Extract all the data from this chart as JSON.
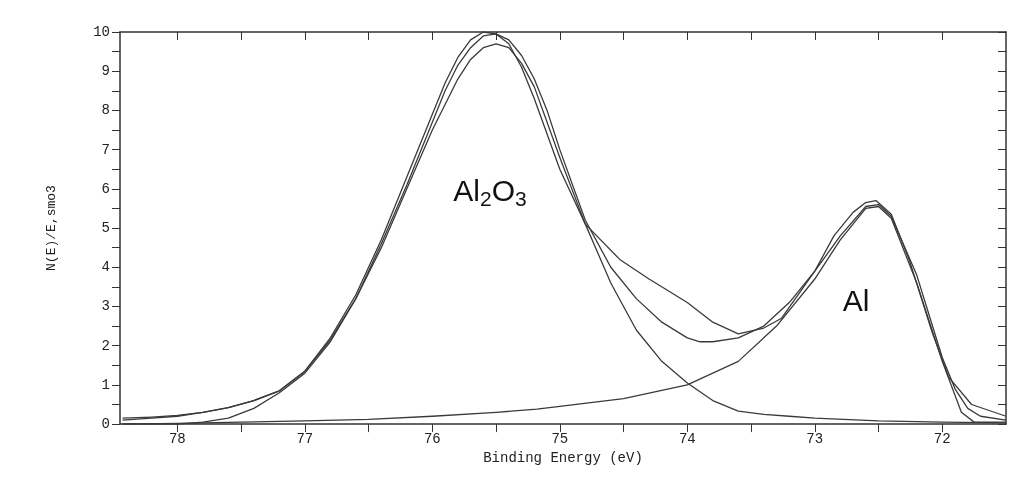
{
  "chart_data": {
    "type": "line",
    "xlabel": "Binding Energy (eV)",
    "ylabel": "N(E)/E,smo3",
    "xlim": [
      78.45,
      71.5
    ],
    "ylim": [
      0,
      10
    ],
    "xticks": [
      78,
      {
        "value": 77.5,
        "label": null
      },
      77,
      {
        "value": 76.5,
        "label": null
      },
      76,
      {
        "value": 75.5,
        "label": null
      },
      75,
      {
        "value": 74.5,
        "label": null
      },
      74,
      {
        "value": 73.5,
        "label": null
      },
      73,
      {
        "value": 72.5,
        "label": null
      },
      72
    ],
    "yticks": [
      0,
      {
        "value": 0.5,
        "label": null
      },
      1,
      {
        "value": 1.5,
        "label": null
      },
      2,
      {
        "value": 2.5,
        "label": null
      },
      3,
      {
        "value": 3.5,
        "label": null
      },
      4,
      {
        "value": 4.5,
        "label": null
      },
      5,
      {
        "value": 5.5,
        "label": null
      },
      6,
      {
        "value": 6.5,
        "label": null
      },
      7,
      {
        "value": 7.5,
        "label": null
      },
      8,
      {
        "value": 8.5,
        "label": null
      },
      9,
      {
        "value": 9.5,
        "label": null
      },
      10
    ],
    "grid": false,
    "marker": "none",
    "line_style": "solid",
    "annotations": [
      "Al$_{2}$O$_{3}$",
      "Al"
    ],
    "series": [
      {
        "color": "#3a3a3a",
        "x": [
          78.43,
          78.2,
          78.0,
          77.8,
          77.6,
          77.4,
          77.2,
          77.0,
          76.8,
          76.6,
          76.4,
          76.2,
          76.0,
          75.9,
          75.8,
          75.7,
          75.6,
          75.5,
          75.4,
          75.3,
          75.2,
          75.1,
          75.0,
          74.8,
          74.53,
          74.3,
          74.0,
          73.8,
          73.6,
          73.4,
          73.26,
          73.0,
          72.85,
          72.7,
          72.6,
          72.52,
          72.4,
          72.26,
          72.08,
          71.95,
          71.77,
          71.5
        ],
        "values": [
          0.15,
          0.18,
          0.22,
          0.3,
          0.42,
          0.6,
          0.85,
          1.35,
          2.2,
          3.3,
          4.7,
          6.3,
          7.9,
          8.7,
          9.35,
          9.8,
          10.0,
          9.95,
          9.7,
          9.1,
          8.3,
          7.4,
          6.5,
          5.1,
          4.2,
          3.7,
          3.1,
          2.6,
          2.3,
          2.45,
          2.7,
          3.9,
          4.8,
          5.4,
          5.65,
          5.7,
          5.35,
          4.2,
          2.35,
          1.2,
          0.5,
          0.2
        ]
      },
      {
        "color": "#3a3a3a",
        "x": [
          78.43,
          78.2,
          78.0,
          77.8,
          77.6,
          77.4,
          77.2,
          77.0,
          76.8,
          76.6,
          76.4,
          76.2,
          76.0,
          75.9,
          75.8,
          75.7,
          75.6,
          75.5,
          75.4,
          75.3,
          75.2,
          75.1,
          75.0,
          74.8,
          74.6,
          74.4,
          74.2,
          74.0,
          73.9,
          73.8,
          73.6,
          73.4,
          73.2,
          73.0,
          72.8,
          72.6,
          72.5,
          72.4,
          72.2,
          72.0,
          71.9,
          71.8,
          71.7,
          71.5
        ],
        "values": [
          0.1,
          0.15,
          0.2,
          0.3,
          0.42,
          0.6,
          0.85,
          1.35,
          2.15,
          3.2,
          4.6,
          6.1,
          7.7,
          8.5,
          9.15,
          9.6,
          9.9,
          9.95,
          9.8,
          9.4,
          8.8,
          8.0,
          7.0,
          5.2,
          4.0,
          3.2,
          2.6,
          2.2,
          2.1,
          2.1,
          2.2,
          2.5,
          3.1,
          3.9,
          4.8,
          5.55,
          5.6,
          5.3,
          3.8,
          1.7,
          0.9,
          0.4,
          0.2,
          0.1
        ]
      },
      {
        "color": "#3a3a3a",
        "x": [
          78.43,
          78.2,
          78.0,
          77.8,
          77.6,
          77.4,
          77.2,
          77.0,
          76.8,
          76.6,
          76.4,
          76.2,
          76.0,
          75.8,
          75.7,
          75.6,
          75.5,
          75.4,
          75.3,
          75.2,
          75.0,
          74.8,
          74.6,
          74.4,
          74.2,
          74.0,
          73.8,
          73.6,
          73.4,
          73.2,
          73.0,
          72.5,
          72.0,
          71.5
        ],
        "values": [
          0,
          0,
          0,
          0.05,
          0.15,
          0.4,
          0.8,
          1.3,
          2.1,
          3.2,
          4.5,
          6.0,
          7.5,
          8.8,
          9.3,
          9.6,
          9.7,
          9.6,
          9.2,
          8.6,
          6.8,
          5.1,
          3.6,
          2.4,
          1.6,
          1.05,
          0.6,
          0.33,
          0.25,
          0.2,
          0.15,
          0.08,
          0.05,
          0.03
        ]
      },
      {
        "color": "#3a3a3a",
        "x": [
          78.43,
          78.0,
          77.5,
          77.0,
          76.5,
          76.0,
          75.5,
          75.18,
          75.0,
          74.5,
          74.0,
          73.6,
          73.3,
          73.0,
          72.8,
          72.6,
          72.5,
          72.4,
          72.2,
          72.0,
          71.85,
          71.75,
          71.5
        ],
        "values": [
          0,
          0.02,
          0.05,
          0.08,
          0.12,
          0.2,
          0.3,
          0.38,
          0.45,
          0.65,
          1.0,
          1.6,
          2.5,
          3.7,
          4.7,
          5.5,
          5.55,
          5.25,
          3.6,
          1.6,
          0.3,
          0.05,
          0.05
        ]
      }
    ]
  }
}
